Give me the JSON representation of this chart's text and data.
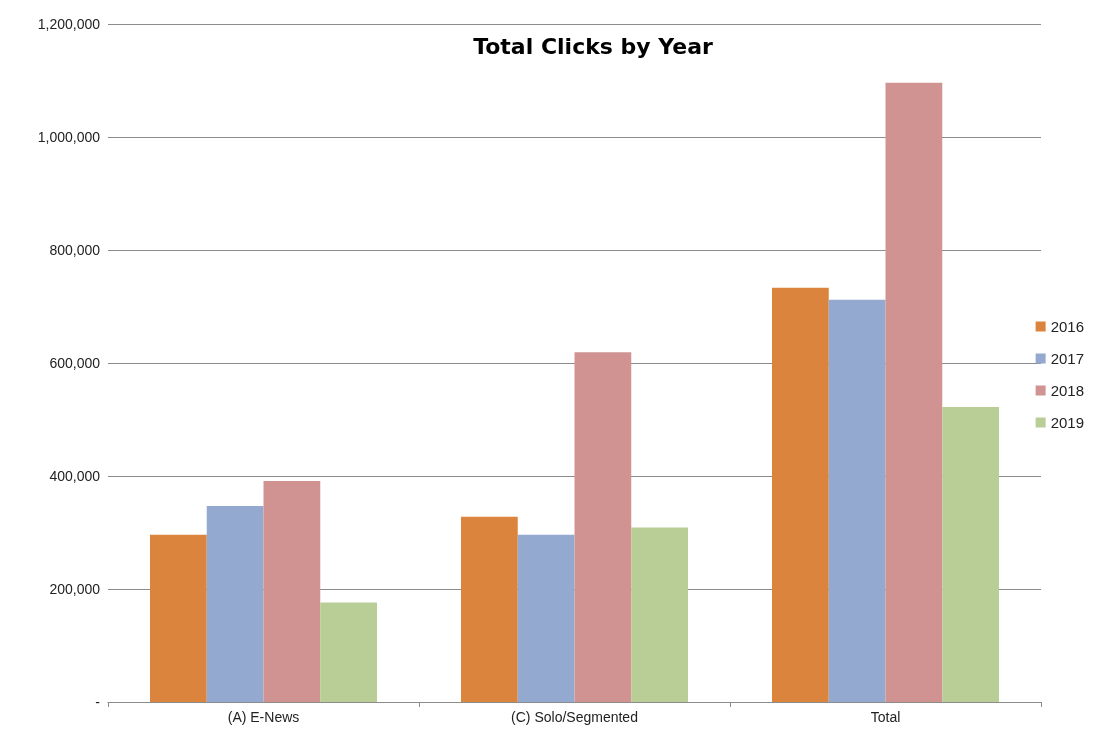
{
  "chart_data": {
    "type": "bar",
    "title": "Total Clicks by Year",
    "categories": [
      "(A) E-News",
      "(C) Solo/Segmented",
      "Total"
    ],
    "series": [
      {
        "name": "2016",
        "color": "#db843d",
        "values": [
          296000,
          328000,
          733000
        ]
      },
      {
        "name": "2017",
        "color": "#93a9cf",
        "values": [
          347000,
          296000,
          712000
        ]
      },
      {
        "name": "2018",
        "color": "#d19392",
        "values": [
          391000,
          619000,
          1096000
        ]
      },
      {
        "name": "2019",
        "color": "#b9cd96",
        "values": [
          176000,
          309000,
          522000
        ]
      }
    ],
    "ylim": [
      0,
      1200000
    ],
    "yticks": [
      {
        "value": 0,
        "label": "-"
      },
      {
        "value": 200000,
        "label": "200,000"
      },
      {
        "value": 400000,
        "label": "400,000"
      },
      {
        "value": 600000,
        "label": "600,000"
      },
      {
        "value": 800000,
        "label": "800,000"
      },
      {
        "value": 1000000,
        "label": "1,000,000"
      },
      {
        "value": 1200000,
        "label": "1,200,000"
      }
    ],
    "grid": "y",
    "legend": "right"
  }
}
